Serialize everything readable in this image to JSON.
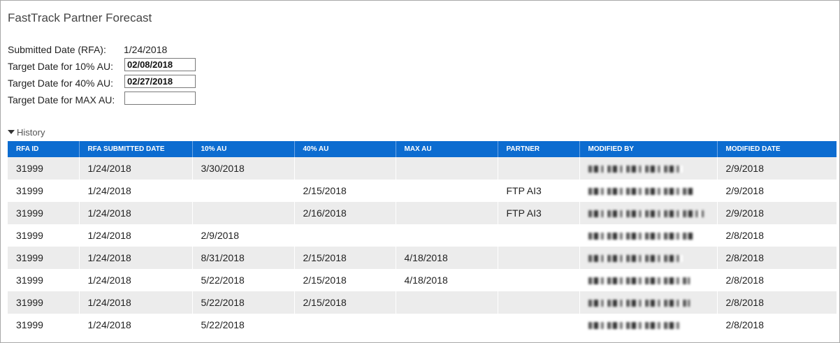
{
  "page": {
    "title": "FastTrack Partner Forecast"
  },
  "form": {
    "submitted": {
      "label": "Submitted Date (RFA):",
      "value": "1/24/2018"
    },
    "target10": {
      "label": "Target Date for 10% AU:",
      "value": "02/08/2018"
    },
    "target40": {
      "label": "Target Date for 40% AU:",
      "value": "02/27/2018"
    },
    "targetMax": {
      "label": "Target Date for MAX AU:",
      "value": ""
    }
  },
  "history": {
    "toggle_label": "History",
    "columns": [
      "RFA ID",
      "RFA SUBMITTED DATE",
      "10% AU",
      "40% AU",
      "MAX AU",
      "PARTNER",
      "MODIFIED BY",
      "MODIFIED DATE"
    ],
    "rows": [
      [
        "31999",
        "1/24/2018",
        "3/30/2018",
        "",
        "",
        "",
        "",
        "2/9/2018"
      ],
      [
        "31999",
        "1/24/2018",
        "",
        "2/15/2018",
        "",
        "FTP AI3",
        "",
        "2/9/2018"
      ],
      [
        "31999",
        "1/24/2018",
        "",
        "2/16/2018",
        "",
        "FTP AI3",
        "",
        "2/9/2018"
      ],
      [
        "31999",
        "1/24/2018",
        "2/9/2018",
        "",
        "",
        "",
        "",
        "2/8/2018"
      ],
      [
        "31999",
        "1/24/2018",
        "8/31/2018",
        "2/15/2018",
        "4/18/2018",
        "",
        "",
        "2/8/2018"
      ],
      [
        "31999",
        "1/24/2018",
        "5/22/2018",
        "2/15/2018",
        "4/18/2018",
        "",
        "",
        "2/8/2018"
      ],
      [
        "31999",
        "1/24/2018",
        "5/22/2018",
        "2/15/2018",
        "",
        "",
        "",
        "2/8/2018"
      ],
      [
        "31999",
        "1/24/2018",
        "5/22/2018",
        "",
        "",
        "",
        "",
        "2/8/2018"
      ]
    ]
  },
  "colors": {
    "header_bg": "#0c6cd0",
    "row_alt": "#ececec"
  }
}
